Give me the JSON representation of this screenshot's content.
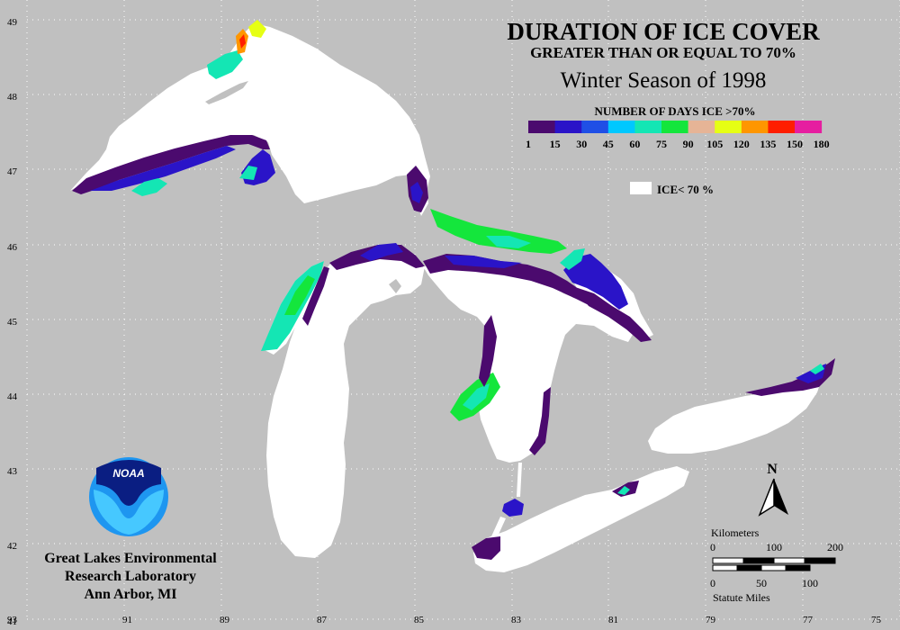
{
  "title": {
    "line1": "DURATION OF ICE COVER",
    "line2": "GREATER THAN OR EQUAL TO 70%",
    "line3": "Winter Season of 1998"
  },
  "legend": {
    "heading": "NUMBER OF DAYS ICE >70%",
    "ticks": [
      "1",
      "15",
      "30",
      "45",
      "60",
      "75",
      "90",
      "105",
      "120",
      "135",
      "150",
      "180"
    ],
    "colors": [
      "#4b0a6e",
      "#2a14c8",
      "#1f4fe6",
      "#00c8ff",
      "#14e6b4",
      "#14e63c",
      "#e6b496",
      "#e6ff14",
      "#ff9600",
      "#ff1e00",
      "#e61ea0"
    ],
    "white_label": "ICE< 70 %",
    "white_color": "#ffffff"
  },
  "axes": {
    "latitude_labels": [
      "49",
      "48",
      "47",
      "46",
      "45",
      "44",
      "43",
      "42",
      "41"
    ],
    "longitude_labels": [
      "93",
      "91",
      "89",
      "87",
      "85",
      "83",
      "81",
      "79",
      "77",
      "75"
    ]
  },
  "north_arrow": {
    "label": "N"
  },
  "scale": {
    "km_title": "Kilometers",
    "km_ticks": [
      "0",
      "100",
      "200"
    ],
    "mi_ticks": [
      "0",
      "50",
      "100"
    ],
    "mi_title": "Statute Miles"
  },
  "logo": {
    "text": "NOAA"
  },
  "credit": {
    "line1": "Great Lakes Environmental",
    "line2": "Research Laboratory",
    "line3": "Ann Arbor, MI"
  },
  "colors": {
    "background": "#c0c0c0",
    "grid_dots": "#ffffff",
    "lake": "#ffffff",
    "island": "#c0c0c0"
  }
}
